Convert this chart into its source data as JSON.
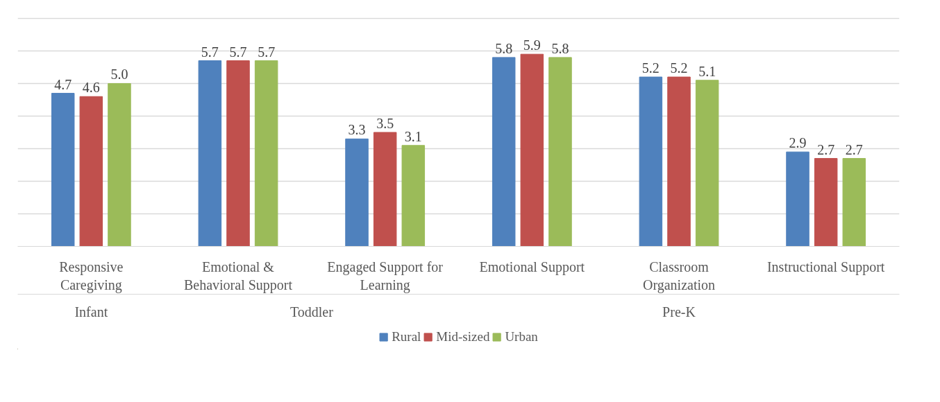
{
  "chart_data": {
    "type": "bar",
    "categories": [
      "Responsive\nCaregiving",
      "Emotional &\nBehavioral Support",
      "Engaged Support for\nLearning",
      "Emotional Support",
      "Classroom\nOrganization",
      "Instructional Support"
    ],
    "series": [
      {
        "name": "Rural",
        "color": "#4f81bd",
        "values": [
          4.7,
          5.7,
          3.3,
          5.8,
          5.2,
          2.9
        ],
        "value_labels": [
          "4.7",
          "5.7",
          "3.3",
          "5.8",
          "5.2",
          "2.9"
        ]
      },
      {
        "name": "Mid-sized",
        "color": "#c0504d",
        "values": [
          4.6,
          5.7,
          3.5,
          5.9,
          5.2,
          2.7
        ],
        "value_labels": [
          "4.6",
          "5.7",
          "3.5",
          "5.9",
          "5.2",
          "2.7"
        ]
      },
      {
        "name": "Urban",
        "color": "#9bbb59",
        "values": [
          5.0,
          5.7,
          3.1,
          5.8,
          5.1,
          2.7
        ],
        "value_labels": [
          "5.0",
          "5.7",
          "3.1",
          "5.8",
          "5.1",
          "2.7"
        ]
      }
    ],
    "annotations": [
      "Infant",
      "Toddler",
      "Pre-K"
    ],
    "tick_labels": "x",
    "grid": "y",
    "legend": "bottom"
  }
}
